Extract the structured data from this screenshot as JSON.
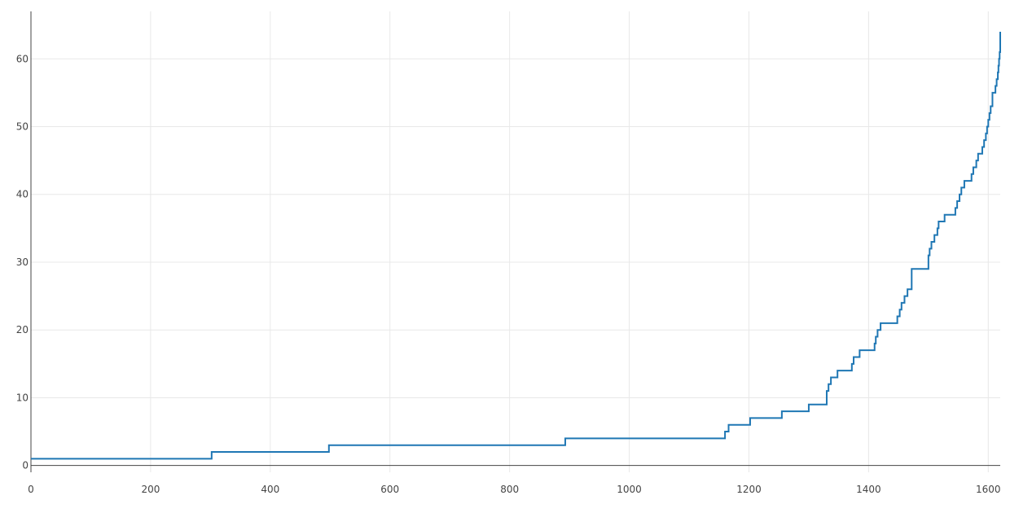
{
  "chart_data": {
    "type": "line",
    "title": "",
    "xlabel": "",
    "ylabel": "",
    "xlim": [
      0,
      1620
    ],
    "ylim": [
      -1,
      67
    ],
    "grid": true,
    "legend": "none",
    "x_ticks": [
      0,
      200,
      400,
      600,
      800,
      1000,
      1200,
      1400,
      1600
    ],
    "x_tick_labels": [
      "0",
      "200",
      "400",
      "600",
      "800",
      "1000",
      "1200",
      "1400",
      "1600"
    ],
    "y_ticks": [
      0,
      10,
      20,
      30,
      40,
      50,
      60
    ],
    "y_tick_labels": [
      "0",
      "10",
      "20",
      "30",
      "40",
      "50",
      "60"
    ],
    "series": [
      {
        "step": "post",
        "x": [
          0,
          302,
          498,
          893,
          1160,
          1166,
          1202,
          1255,
          1300,
          1330,
          1333,
          1337,
          1340,
          1348,
          1372,
          1375,
          1378,
          1385,
          1410,
          1412,
          1415,
          1420,
          1430,
          1448,
          1452,
          1455,
          1460,
          1465,
          1472,
          1500,
          1502,
          1505,
          1510,
          1515,
          1517,
          1527,
          1541,
          1545,
          1548,
          1552,
          1555,
          1560,
          1572,
          1575,
          1580,
          1583,
          1590,
          1593,
          1596,
          1598,
          1600,
          1602,
          1604,
          1607,
          1609,
          1612,
          1614,
          1616,
          1617,
          1618,
          1619,
          1620
        ],
        "y": [
          1,
          2,
          3,
          4,
          5,
          6,
          7,
          8,
          9,
          11,
          12,
          13,
          13,
          14,
          15,
          16,
          16,
          17,
          18,
          19,
          20,
          21,
          21,
          22,
          23,
          24,
          25,
          26,
          29,
          31,
          32,
          33,
          34,
          35,
          36,
          37,
          37,
          38,
          39,
          40,
          41,
          42,
          43,
          44,
          45,
          46,
          47,
          48,
          49,
          50,
          51,
          52,
          53,
          55,
          55,
          56,
          57,
          58,
          59,
          60,
          61,
          64
        ]
      }
    ],
    "colors": {
      "line": "#1f77b4",
      "grid": "#e8e8e8",
      "axis": "#444444",
      "tick_text": "#444444"
    }
  }
}
